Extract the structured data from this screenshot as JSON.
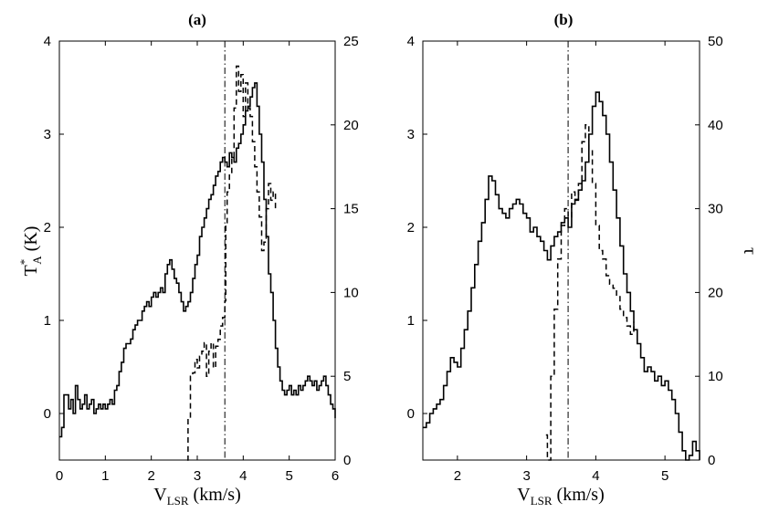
{
  "chart_data": [
    {
      "type": "line",
      "title": "(a)",
      "xlabel_main": "V",
      "xlabel_sub": "LSR",
      "xlabel_unit": " (km/s)",
      "ylabel_main": "T",
      "ylabel_sup": "*",
      "ylabel_sub": "A",
      "ylabel_unit": " (K)",
      "y2label": "",
      "xlim": [
        0,
        6
      ],
      "ylim": [
        -0.5,
        4
      ],
      "y2lim": [
        0,
        25
      ],
      "xticks": [
        "0",
        "1",
        "2",
        "3",
        "4",
        "5",
        "6"
      ],
      "yticks": [
        "0",
        "1",
        "2",
        "3",
        "4"
      ],
      "y2ticks": [
        "0",
        "5",
        "10",
        "15",
        "20",
        "25"
      ],
      "vline_x": 3.6,
      "series": [
        {
          "style": "solid",
          "axis": "left",
          "x": [
            0.0,
            0.05,
            0.1,
            0.15,
            0.2,
            0.25,
            0.3,
            0.35,
            0.4,
            0.45,
            0.5,
            0.55,
            0.6,
            0.65,
            0.7,
            0.75,
            0.8,
            0.85,
            0.9,
            0.95,
            1.0,
            1.05,
            1.1,
            1.15,
            1.2,
            1.25,
            1.3,
            1.35,
            1.4,
            1.45,
            1.5,
            1.55,
            1.6,
            1.65,
            1.7,
            1.75,
            1.8,
            1.85,
            1.9,
            1.95,
            2.0,
            2.05,
            2.1,
            2.15,
            2.2,
            2.25,
            2.3,
            2.35,
            2.4,
            2.45,
            2.5,
            2.55,
            2.6,
            2.65,
            2.7,
            2.75,
            2.8,
            2.85,
            2.9,
            2.95,
            3.0,
            3.05,
            3.1,
            3.15,
            3.2,
            3.25,
            3.3,
            3.35,
            3.4,
            3.45,
            3.5,
            3.55,
            3.6,
            3.65,
            3.7,
            3.75,
            3.8,
            3.85,
            3.9,
            3.95,
            4.0,
            4.05,
            4.1,
            4.15,
            4.2,
            4.25,
            4.3,
            4.35,
            4.4,
            4.45,
            4.5,
            4.55,
            4.6,
            4.65,
            4.7,
            4.75,
            4.8,
            4.85,
            4.9,
            4.95,
            5.0,
            5.05,
            5.1,
            5.15,
            5.2,
            5.25,
            5.3,
            5.35,
            5.4,
            5.45,
            5.5,
            5.55,
            5.6,
            5.65,
            5.7,
            5.75,
            5.8,
            5.85,
            5.9,
            5.95,
            6.0
          ],
          "y": [
            -0.25,
            -0.15,
            0.2,
            0.2,
            0.05,
            0.15,
            0.0,
            0.3,
            0.15,
            0.05,
            0.1,
            0.2,
            0.05,
            0.1,
            0.15,
            0.0,
            0.05,
            0.1,
            0.05,
            0.1,
            0.05,
            0.1,
            0.15,
            0.1,
            0.25,
            0.3,
            0.45,
            0.55,
            0.7,
            0.75,
            0.75,
            0.8,
            0.9,
            0.95,
            1.0,
            1.0,
            1.1,
            1.15,
            1.2,
            1.15,
            1.25,
            1.3,
            1.25,
            1.3,
            1.35,
            1.3,
            1.5,
            1.6,
            1.65,
            1.55,
            1.45,
            1.4,
            1.3,
            1.2,
            1.1,
            1.15,
            1.2,
            1.3,
            1.45,
            1.6,
            1.7,
            1.9,
            2.0,
            2.1,
            2.2,
            2.3,
            2.35,
            2.45,
            2.55,
            2.6,
            2.7,
            2.75,
            2.7,
            2.65,
            2.8,
            2.75,
            2.7,
            2.85,
            2.9,
            3.0,
            3.1,
            3.25,
            3.3,
            3.4,
            3.5,
            3.55,
            3.3,
            3.0,
            2.7,
            2.3,
            1.9,
            1.5,
            1.3,
            1.0,
            0.7,
            0.5,
            0.35,
            0.25,
            0.2,
            0.25,
            0.3,
            0.2,
            0.25,
            0.2,
            0.3,
            0.25,
            0.3,
            0.35,
            0.4,
            0.35,
            0.3,
            0.35,
            0.25,
            0.3,
            0.35,
            0.4,
            0.3,
            0.2,
            0.1,
            0.05,
            -0.05
          ]
        },
        {
          "style": "dashed",
          "axis": "right",
          "x": [
            2.78,
            2.8,
            2.85,
            2.9,
            2.95,
            3.0,
            3.05,
            3.1,
            3.15,
            3.2,
            3.25,
            3.3,
            3.35,
            3.4,
            3.45,
            3.5,
            3.55,
            3.6,
            3.62,
            3.65,
            3.7,
            3.75,
            3.8,
            3.85,
            3.9,
            3.95,
            4.0,
            4.05,
            4.1,
            4.15,
            4.2,
            4.25,
            4.3,
            4.35,
            4.4,
            4.45,
            4.5,
            4.55,
            4.6,
            4.65,
            4.7
          ],
          "y": [
            0,
            2.5,
            5.0,
            5.2,
            6.0,
            5.5,
            6.2,
            6.5,
            7.0,
            5.0,
            6.5,
            7.0,
            5.5,
            6.8,
            7.2,
            8.0,
            8.5,
            9.5,
            14.0,
            16.0,
            17.0,
            18.0,
            21.0,
            23.5,
            22.0,
            23.0,
            20.5,
            22.5,
            21.0,
            20.5,
            19.0,
            17.5,
            16.0,
            14.5,
            12.5,
            13.0,
            15.0,
            16.5,
            15.5,
            16.0,
            15.0
          ]
        }
      ]
    },
    {
      "type": "line",
      "title": "(b)",
      "xlabel_main": "V",
      "xlabel_sub": "LSR",
      "xlabel_unit": " (km/s)",
      "ylabel_main": "",
      "ylabel_sup": "",
      "ylabel_sub": "",
      "ylabel_unit": "",
      "y2label": "τ",
      "xlim": [
        1.5,
        5.5
      ],
      "ylim": [
        -0.5,
        4
      ],
      "y2lim": [
        0,
        50
      ],
      "xticks": [
        "2",
        "3",
        "4",
        "5"
      ],
      "yticks": [
        "0",
        "1",
        "2",
        "3",
        "4"
      ],
      "y2ticks": [
        "0",
        "10",
        "20",
        "30",
        "40",
        "50"
      ],
      "vline_x": 3.6,
      "series": [
        {
          "style": "solid",
          "axis": "left",
          "x": [
            1.5,
            1.55,
            1.6,
            1.65,
            1.7,
            1.75,
            1.8,
            1.85,
            1.9,
            1.95,
            2.0,
            2.05,
            2.1,
            2.15,
            2.2,
            2.25,
            2.3,
            2.35,
            2.4,
            2.45,
            2.5,
            2.55,
            2.6,
            2.65,
            2.7,
            2.75,
            2.8,
            2.85,
            2.9,
            2.95,
            3.0,
            3.05,
            3.1,
            3.15,
            3.2,
            3.25,
            3.3,
            3.35,
            3.4,
            3.45,
            3.5,
            3.55,
            3.6,
            3.65,
            3.7,
            3.75,
            3.8,
            3.85,
            3.9,
            3.95,
            4.0,
            4.05,
            4.1,
            4.15,
            4.2,
            4.25,
            4.3,
            4.35,
            4.4,
            4.45,
            4.5,
            4.55,
            4.6,
            4.65,
            4.7,
            4.75,
            4.8,
            4.85,
            4.9,
            4.95,
            5.0,
            5.05,
            5.1,
            5.15,
            5.2,
            5.25,
            5.3,
            5.35,
            5.4,
            5.45,
            5.5
          ],
          "y": [
            -0.15,
            -0.1,
            0.0,
            0.05,
            0.1,
            0.15,
            0.3,
            0.45,
            0.6,
            0.55,
            0.5,
            0.7,
            0.9,
            1.1,
            1.35,
            1.6,
            1.85,
            2.05,
            2.3,
            2.55,
            2.5,
            2.35,
            2.2,
            2.15,
            2.1,
            2.2,
            2.25,
            2.3,
            2.25,
            2.15,
            2.1,
            1.95,
            2.0,
            1.9,
            1.85,
            1.75,
            1.65,
            1.8,
            1.9,
            1.95,
            2.05,
            2.1,
            2.0,
            2.25,
            2.3,
            2.4,
            2.5,
            2.7,
            3.0,
            3.3,
            3.45,
            3.35,
            3.2,
            3.0,
            2.7,
            2.4,
            2.1,
            1.8,
            1.5,
            1.3,
            1.1,
            0.9,
            0.75,
            0.6,
            0.45,
            0.5,
            0.45,
            0.35,
            0.4,
            0.3,
            0.35,
            0.25,
            0.15,
            0.0,
            -0.2,
            -0.4,
            -0.5,
            -0.45,
            -0.3,
            -0.4,
            -0.5
          ]
        },
        {
          "style": "dashed",
          "axis": "right",
          "x": [
            3.28,
            3.3,
            3.35,
            3.4,
            3.45,
            3.5,
            3.55,
            3.6,
            3.65,
            3.7,
            3.75,
            3.8,
            3.85,
            3.9,
            3.95,
            4.0,
            4.05,
            4.1,
            4.15,
            4.2,
            4.25,
            4.3,
            4.35,
            4.4,
            4.45,
            4.5,
            4.55
          ],
          "y": [
            3.0,
            0.0,
            10.0,
            18.0,
            24.0,
            28.0,
            30.0,
            29.0,
            32.0,
            31.0,
            33.0,
            38.0,
            40.0,
            37.0,
            33.0,
            28.0,
            25.0,
            24.0,
            22.0,
            21.0,
            20.5,
            19.5,
            18.0,
            17.0,
            16.0,
            15.0,
            16.5
          ]
        }
      ]
    }
  ]
}
